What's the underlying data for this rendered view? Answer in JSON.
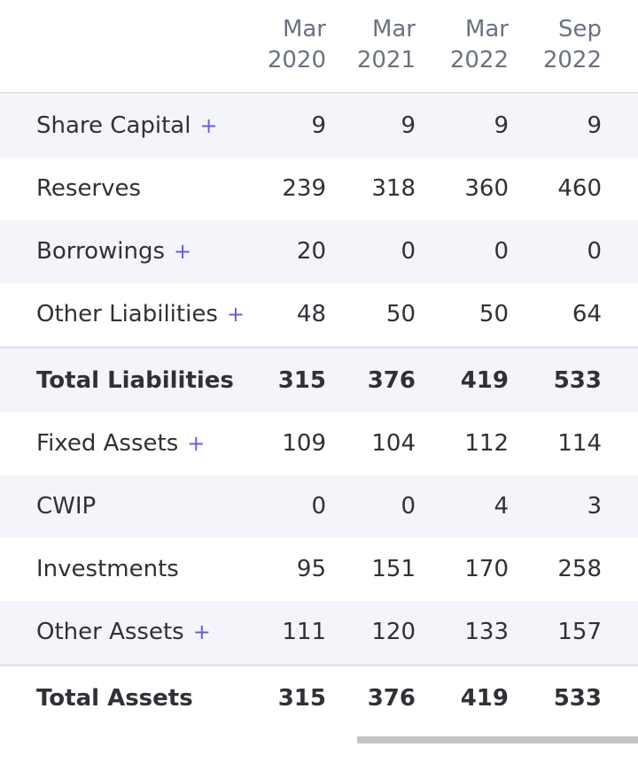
{
  "columns": [
    {
      "month": "Mar",
      "year": "2020"
    },
    {
      "month": "Mar",
      "year": "2021"
    },
    {
      "month": "Mar",
      "year": "2022"
    },
    {
      "month": "Sep",
      "year": "2022"
    }
  ],
  "expand_symbol": "+",
  "rows": [
    {
      "label": "Share Capital",
      "values": [
        "9",
        "9",
        "9",
        "9"
      ]
    },
    {
      "label": "Reserves",
      "values": [
        "239",
        "318",
        "360",
        "460"
      ]
    },
    {
      "label": "Borrowings",
      "values": [
        "20",
        "0",
        "0",
        "0"
      ]
    },
    {
      "label": "Other Liabilities",
      "values": [
        "48",
        "50",
        "50",
        "64"
      ]
    },
    {
      "label": "Total Liabilities",
      "values": [
        "315",
        "376",
        "419",
        "533"
      ]
    },
    {
      "label": "Fixed Assets",
      "values": [
        "109",
        "104",
        "112",
        "114"
      ]
    },
    {
      "label": "CWIP",
      "values": [
        "0",
        "0",
        "4",
        "3"
      ]
    },
    {
      "label": "Investments",
      "values": [
        "95",
        "151",
        "170",
        "258"
      ]
    },
    {
      "label": "Other Assets",
      "values": [
        "111",
        "120",
        "133",
        "157"
      ]
    },
    {
      "label": "Total Assets",
      "values": [
        "315",
        "376",
        "419",
        "533"
      ]
    }
  ]
}
